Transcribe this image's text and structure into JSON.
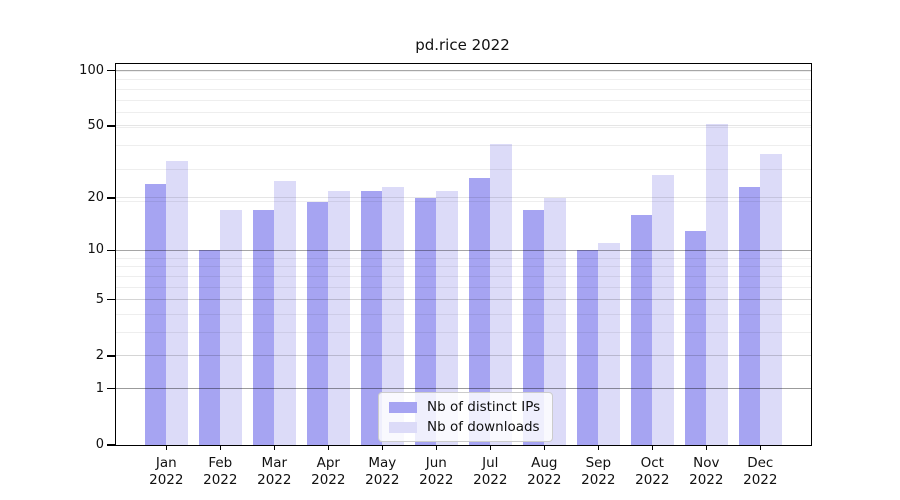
{
  "title": "pd.rice 2022",
  "chart_data": {
    "type": "bar",
    "categories": [
      "Jan",
      "Feb",
      "Mar",
      "Apr",
      "May",
      "Jun",
      "Jul",
      "Aug",
      "Sep",
      "Oct",
      "Nov",
      "Dec"
    ],
    "x_tick_second_line": "2022",
    "series": [
      {
        "name": "Nb of distinct IPs",
        "color": "#a6a4f2",
        "values": [
          24,
          10,
          17,
          19,
          22,
          20,
          26,
          17,
          10,
          16,
          13,
          23
        ]
      },
      {
        "name": "Nb of downloads",
        "color": "#dcdbf8",
        "values": [
          32,
          17,
          25,
          22,
          23,
          22,
          40,
          20,
          11,
          27,
          51,
          35
        ]
      }
    ],
    "y_ticks": [
      0,
      1,
      2,
      5,
      10,
      20,
      50,
      100
    ],
    "y_scale": "log10(1+x)",
    "ylim": [
      0,
      100
    ],
    "grid": true,
    "legend_position": "bottom-center"
  }
}
